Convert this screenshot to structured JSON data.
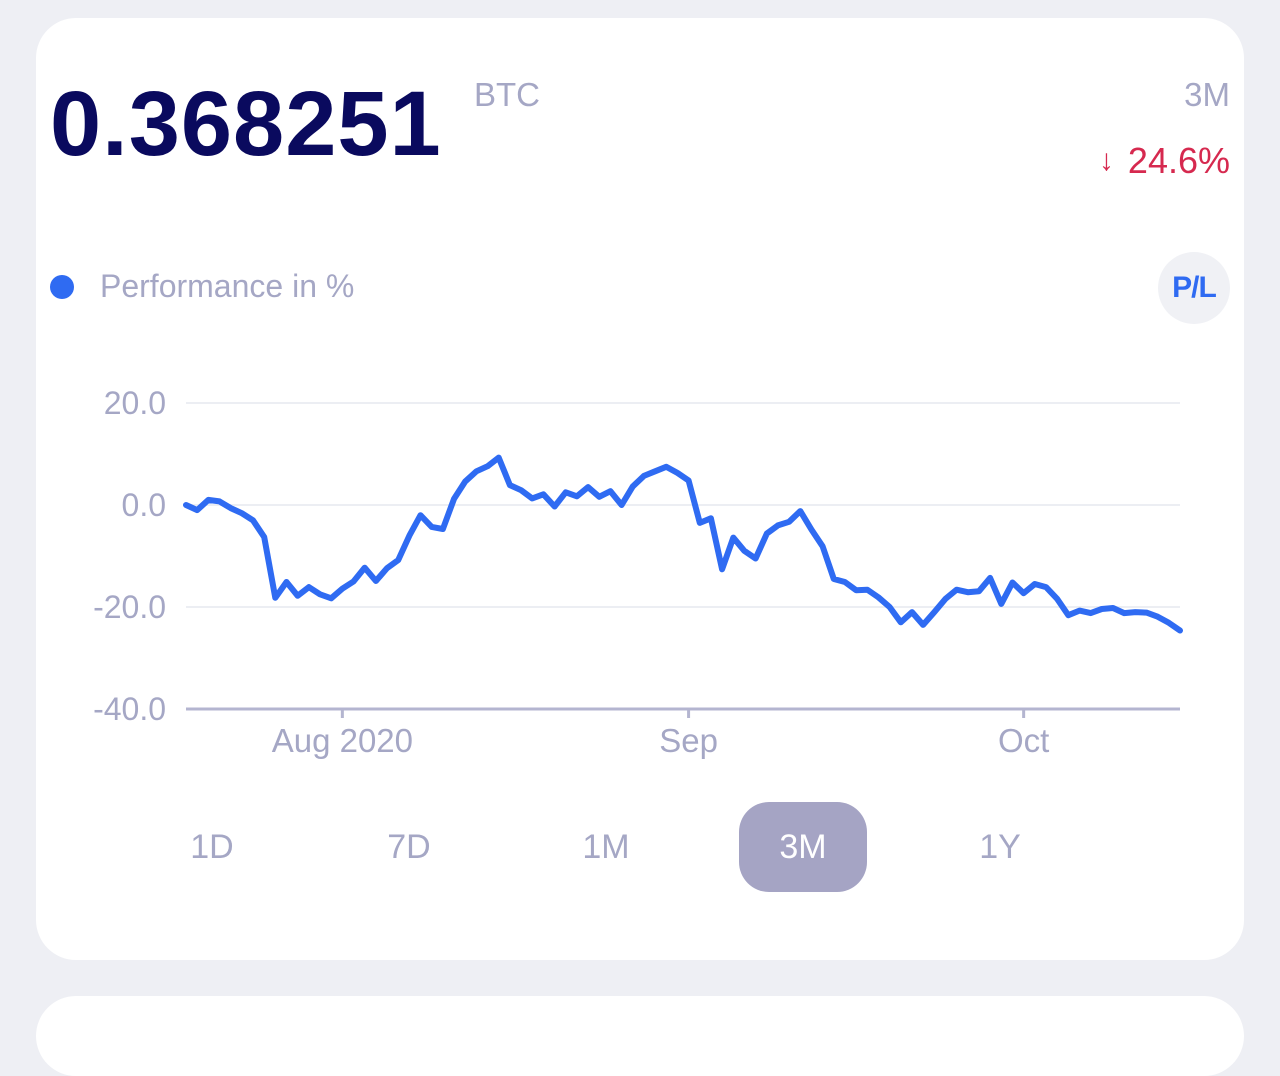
{
  "balance": {
    "value": "0.368251",
    "unit": "BTC"
  },
  "performance": {
    "period": "3M",
    "arrow": "↓",
    "change": "24.6%",
    "change_color": "#d6294f"
  },
  "legend": {
    "label": "Performance in %",
    "color": "#2f6bf2"
  },
  "pl_toggle": {
    "label": "P/L"
  },
  "tabs": [
    {
      "label": "1D",
      "active": false
    },
    {
      "label": "7D",
      "active": false
    },
    {
      "label": "1M",
      "active": false
    },
    {
      "label": "3M",
      "active": true
    },
    {
      "label": "1Y",
      "active": false
    }
  ],
  "colors": {
    "line": "#2f6bf2",
    "grid": "#eceef3",
    "axis": "#b4b5d0",
    "text": "#a5a7c5",
    "active_tab": "#a5a4c4"
  },
  "chart_data": {
    "type": "line",
    "ylabel": "",
    "xlabel": "",
    "ylim": [
      -40,
      20
    ],
    "xlim": [
      "2020-07-18",
      "2020-10-15"
    ],
    "grid": true,
    "y_ticks": [
      "20.0",
      "0.0",
      "-20.0",
      "-40.0"
    ],
    "x_ticks": [
      {
        "date": "2020-08-01",
        "label": "Aug 2020"
      },
      {
        "date": "2020-09-01",
        "label": "Sep"
      },
      {
        "date": "2020-10-01",
        "label": "Oct"
      }
    ],
    "series": [
      {
        "x": [
          "2020-07-18",
          "2020-07-19",
          "2020-07-20",
          "2020-07-21",
          "2020-07-22",
          "2020-07-23",
          "2020-07-24",
          "2020-07-25",
          "2020-07-26",
          "2020-07-27",
          "2020-07-28",
          "2020-07-29",
          "2020-07-30",
          "2020-07-31",
          "2020-08-01",
          "2020-08-02",
          "2020-08-03",
          "2020-08-04",
          "2020-08-05",
          "2020-08-06",
          "2020-08-07",
          "2020-08-08",
          "2020-08-09",
          "2020-08-10",
          "2020-08-11",
          "2020-08-12",
          "2020-08-13",
          "2020-08-14",
          "2020-08-15",
          "2020-08-16",
          "2020-08-17",
          "2020-08-18",
          "2020-08-19",
          "2020-08-20",
          "2020-08-21",
          "2020-08-22",
          "2020-08-23",
          "2020-08-24",
          "2020-08-25",
          "2020-08-26",
          "2020-08-27",
          "2020-08-28",
          "2020-08-29",
          "2020-08-30",
          "2020-08-31",
          "2020-09-01",
          "2020-09-02",
          "2020-09-03",
          "2020-09-04",
          "2020-09-05",
          "2020-09-06",
          "2020-09-07",
          "2020-09-08",
          "2020-09-09",
          "2020-09-10",
          "2020-09-11",
          "2020-09-12",
          "2020-09-13",
          "2020-09-14",
          "2020-09-15",
          "2020-09-16",
          "2020-09-17",
          "2020-09-18",
          "2020-09-19",
          "2020-09-20",
          "2020-09-21",
          "2020-09-22",
          "2020-09-23",
          "2020-09-24",
          "2020-09-25",
          "2020-09-26",
          "2020-09-27",
          "2020-09-28",
          "2020-09-29",
          "2020-09-30",
          "2020-10-01",
          "2020-10-02",
          "2020-10-03",
          "2020-10-04",
          "2020-10-05",
          "2020-10-06",
          "2020-10-07",
          "2020-10-08",
          "2020-10-09",
          "2020-10-10",
          "2020-10-11",
          "2020-10-12",
          "2020-10-13",
          "2020-10-14",
          "2020-10-15"
        ],
        "values": [
          0.0,
          -1.0,
          1.0,
          0.7,
          -0.6,
          -1.6,
          -3.0,
          -6.3,
          -18.2,
          -15.1,
          -17.8,
          -16.1,
          -17.5,
          -18.3,
          -16.4,
          -15.0,
          -12.3,
          -14.9,
          -12.4,
          -10.8,
          -6.0,
          -2.0,
          -4.3,
          -4.7,
          1.2,
          4.6,
          6.6,
          7.6,
          9.3,
          3.9,
          2.9,
          1.3,
          2.1,
          -0.3,
          2.5,
          1.7,
          3.5,
          1.6,
          2.7,
          0.0,
          3.6,
          5.7,
          6.6,
          7.5,
          6.3,
          4.8,
          -3.5,
          -2.6,
          -12.6,
          -6.4,
          -9.0,
          -10.5,
          -5.6,
          -4.0,
          -3.3,
          -1.2,
          -4.8,
          -8.1,
          -14.5,
          -15.1,
          -16.7,
          -16.6,
          -18.1,
          -20.0,
          -23.0,
          -21.0,
          -23.5,
          -21.0,
          -18.4,
          -16.6,
          -17.1,
          -16.9,
          -14.3,
          -19.4,
          -15.2,
          -17.3,
          -15.5,
          -16.1,
          -18.4,
          -21.6,
          -20.7,
          -21.2,
          -20.4,
          -20.2,
          -21.2,
          -21.0,
          -21.1,
          -21.9,
          -23.1,
          -24.6
        ]
      }
    ]
  }
}
